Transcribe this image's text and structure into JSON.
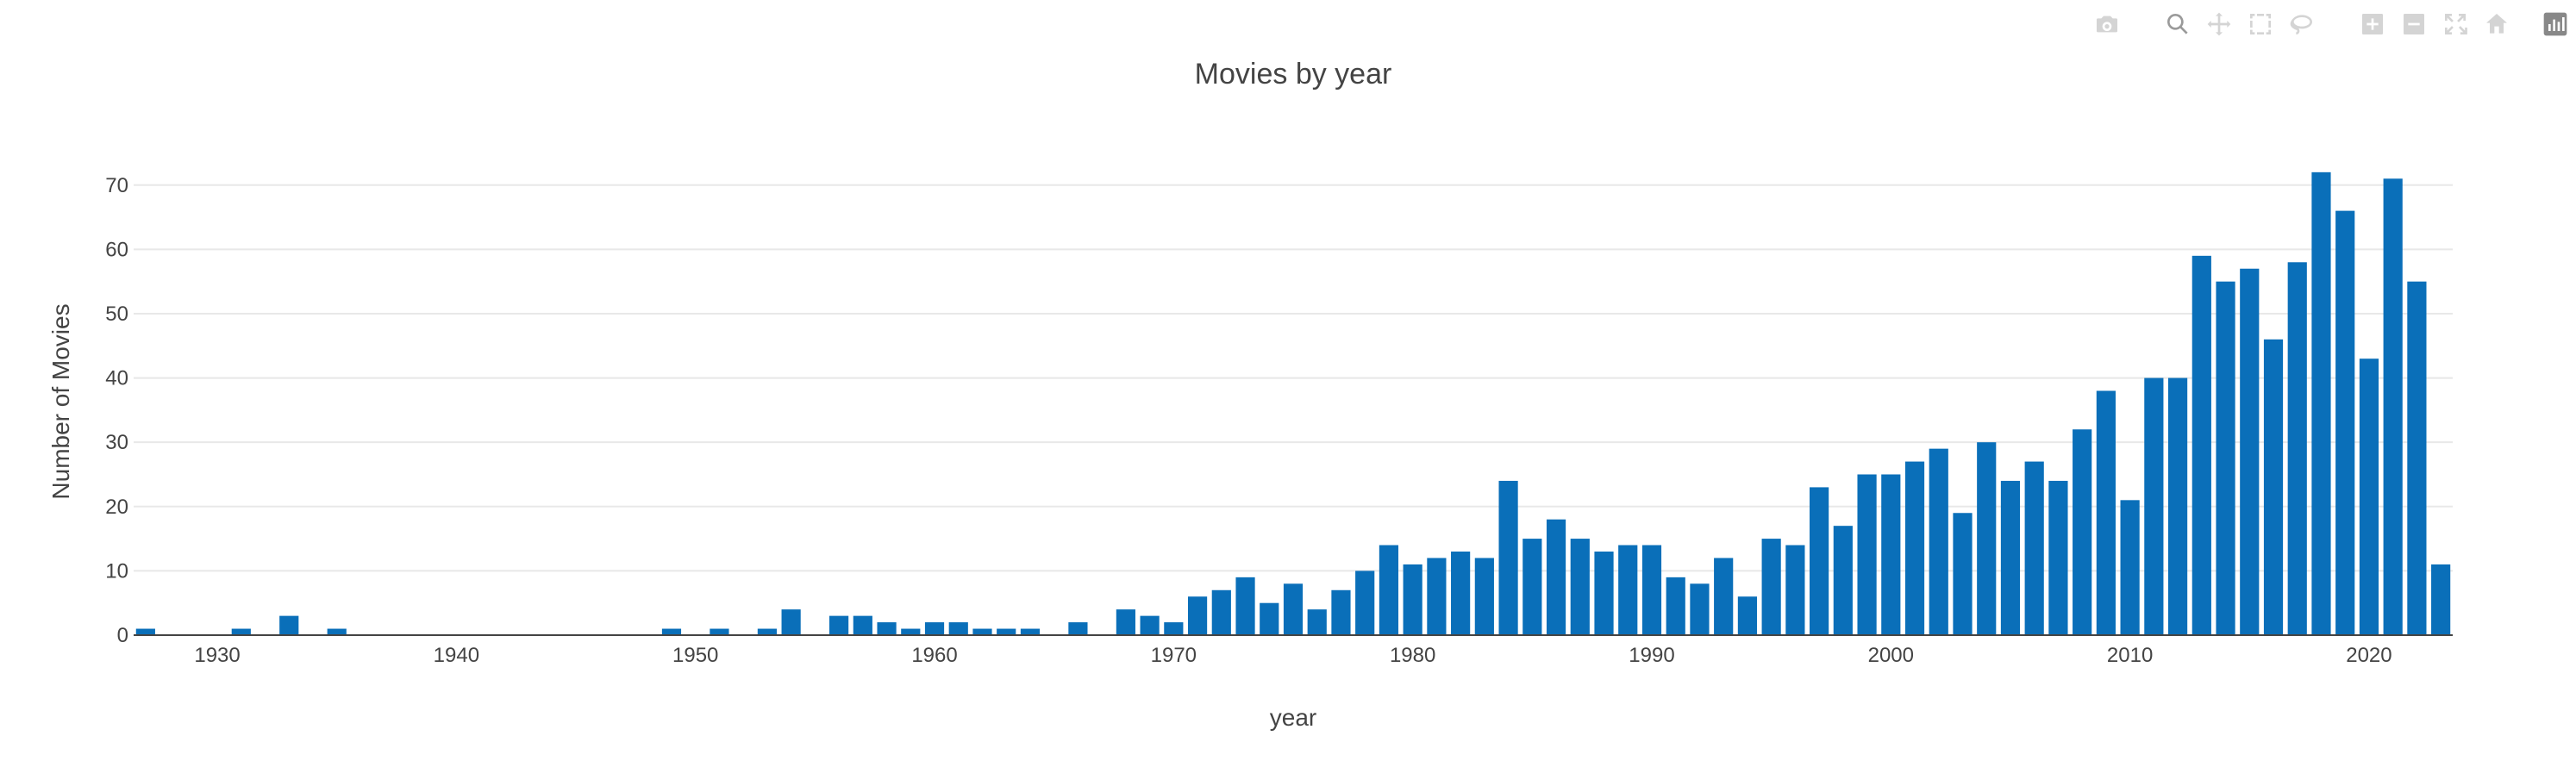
{
  "chart_data": {
    "type": "bar",
    "title": "Movies by year",
    "xlabel": "year",
    "ylabel": "Number of Movies",
    "x": [
      1927,
      1931,
      1933,
      1935,
      1949,
      1951,
      1953,
      1954,
      1956,
      1957,
      1958,
      1959,
      1960,
      1961,
      1962,
      1963,
      1964,
      1966,
      1968,
      1969,
      1970,
      1971,
      1972,
      1973,
      1974,
      1975,
      1976,
      1977,
      1978,
      1979,
      1980,
      1981,
      1982,
      1983,
      1984,
      1985,
      1986,
      1987,
      1988,
      1989,
      1990,
      1991,
      1992,
      1993,
      1994,
      1995,
      1996,
      1997,
      1998,
      1999,
      2000,
      2001,
      2002,
      2003,
      2004,
      2005,
      2006,
      2007,
      2008,
      2009,
      2010,
      2011,
      2012,
      2013,
      2014,
      2015,
      2016,
      2017,
      2018,
      2019,
      2020,
      2021,
      2022,
      2023
    ],
    "values": [
      1,
      1,
      3,
      1,
      1,
      1,
      1,
      4,
      3,
      3,
      2,
      1,
      2,
      2,
      1,
      1,
      1,
      2,
      4,
      3,
      2,
      6,
      7,
      9,
      5,
      8,
      4,
      7,
      10,
      14,
      11,
      12,
      13,
      12,
      24,
      15,
      18,
      15,
      13,
      14,
      14,
      9,
      8,
      12,
      6,
      15,
      14,
      23,
      17,
      25,
      25,
      27,
      29,
      19,
      30,
      24,
      27,
      24,
      32,
      38,
      21,
      40,
      40,
      59,
      55,
      57,
      46,
      58,
      72,
      66,
      43,
      71,
      55,
      11
    ],
    "xlim": [
      1926.5,
      2023.5
    ],
    "ylim": [
      0,
      76
    ],
    "x_ticks": [
      "1930",
      "1940",
      "1950",
      "1960",
      "1970",
      "1980",
      "1990",
      "2000",
      "2010",
      "2020"
    ],
    "y_ticks": [
      "0",
      "10",
      "20",
      "30",
      "40",
      "50",
      "60",
      "70"
    ],
    "bar_color": "#0a6fb9",
    "grid": true,
    "legend": "none"
  },
  "modebar": {
    "buttons": [
      "camera-icon",
      "zoom-icon",
      "pan-icon",
      "box-select-icon",
      "lasso-icon",
      "zoom-in-icon",
      "zoom-out-icon",
      "autoscale-icon",
      "home-icon",
      "plotly-logo-icon"
    ]
  }
}
